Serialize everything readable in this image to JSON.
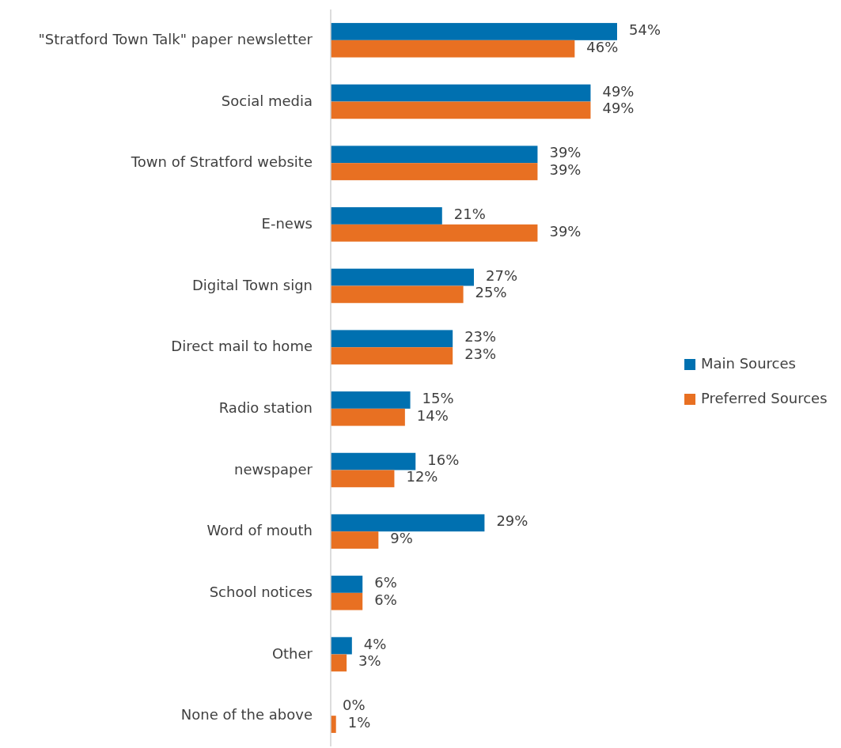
{
  "chart_data": {
    "type": "bar",
    "orientation": "horizontal",
    "categories": [
      "\"Stratford Town Talk\" paper newsletter",
      "Social media",
      "Town of Stratford website",
      "E-news",
      "Digital Town sign",
      "Direct mail to home",
      "Radio station",
      "newspaper",
      "Word of mouth",
      "School notices",
      "Other",
      "None of the above"
    ],
    "series": [
      {
        "name": "Main Sources",
        "color": "#0070b0",
        "values": [
          54,
          49,
          39,
          21,
          27,
          23,
          15,
          16,
          29,
          6,
          4,
          0
        ],
        "value_labels": [
          "54%",
          "49%",
          "39%",
          "21%",
          "27%",
          "23%",
          "15%",
          "16%",
          "29%",
          "6%",
          "4%",
          "0%"
        ]
      },
      {
        "name": "Preferred Sources",
        "color": "#e87022",
        "values": [
          46,
          49,
          39,
          39,
          25,
          23,
          14,
          12,
          9,
          6,
          3,
          1
        ],
        "value_labels": [
          "46%",
          "49%",
          "39%",
          "39%",
          "25%",
          "23%",
          "14%",
          "12%",
          "9%",
          "6%",
          "3%",
          "1%"
        ]
      }
    ],
    "legend": "right"
  }
}
